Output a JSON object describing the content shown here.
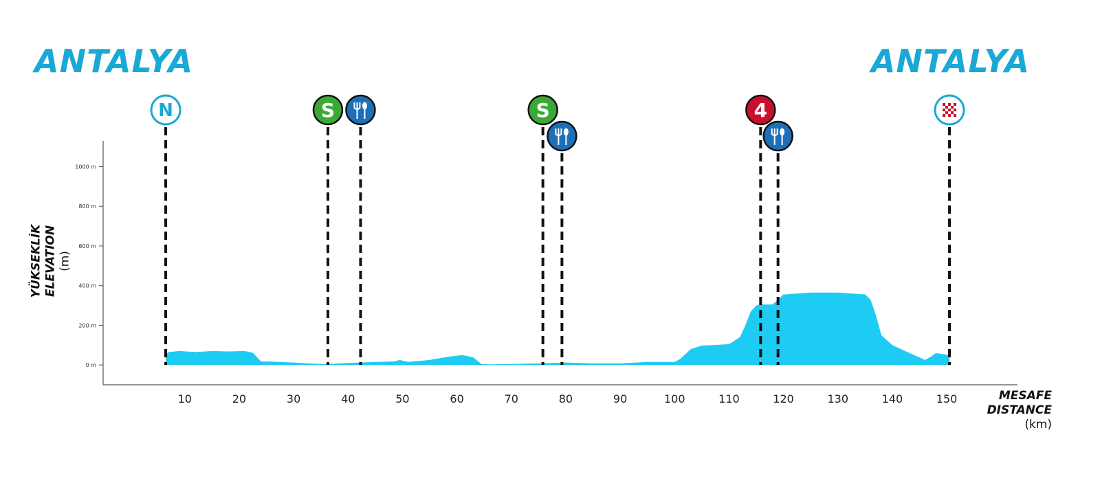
{
  "start_city": "ANTALYA",
  "finish_city": "ANTALYA",
  "colors": {
    "profile": "#1ecbf2",
    "city": "#1aa9d6",
    "sprint": "#3aaa35",
    "feed": "#1d6fb8",
    "climb": "#c8102e",
    "neutral_ring": "#1aa9d6"
  },
  "chart_data": {
    "type": "area",
    "ylabel_lines": [
      "YÜKSEKLİK",
      "ELEVATION",
      "(m)"
    ],
    "xlabel_lines": [
      "MESAFE",
      "DISTANCE",
      "(km)"
    ],
    "xlim": [
      -5,
      163
    ],
    "ylim": [
      -100,
      1130
    ],
    "x_ticks": [
      10,
      20,
      30,
      40,
      50,
      60,
      70,
      80,
      90,
      100,
      110,
      120,
      130,
      140,
      150
    ],
    "y_ticks": [
      0,
      200,
      400,
      600,
      800,
      1000
    ],
    "y_tick_labels": [
      "0 m",
      "200 m",
      "400 m",
      "600 m",
      "800 m",
      "1000 m"
    ],
    "profile": {
      "x": [
        6.5,
        7,
        9,
        12,
        15,
        18,
        21,
        22.5,
        24,
        26,
        30,
        34,
        36,
        40,
        45,
        48.5,
        49.5,
        51,
        55,
        58,
        61,
        63,
        64.5,
        66,
        70,
        75,
        80,
        85,
        90,
        95,
        100,
        101,
        102,
        103,
        105,
        107,
        110,
        112,
        113,
        114,
        115,
        116,
        118,
        120,
        125,
        130,
        135,
        136,
        137,
        138,
        140,
        142,
        144,
        145,
        146,
        147,
        148,
        150.5
      ],
      "y": [
        50,
        65,
        70,
        65,
        70,
        68,
        70,
        62,
        18,
        17,
        12,
        6,
        5,
        10,
        15,
        18,
        25,
        15,
        25,
        40,
        50,
        38,
        5,
        3,
        5,
        8,
        12,
        8,
        8,
        15,
        15,
        30,
        55,
        80,
        98,
        100,
        105,
        140,
        200,
        270,
        300,
        305,
        305,
        355,
        365,
        365,
        355,
        330,
        250,
        150,
        100,
        75,
        50,
        38,
        25,
        40,
        60,
        50
      ]
    },
    "markers": [
      {
        "km": 6.5,
        "type": "neutral",
        "label": "N"
      },
      {
        "km": 36.3,
        "type": "sprint",
        "label": "S"
      },
      {
        "km": 42.3,
        "type": "feed",
        "label": ""
      },
      {
        "km": 75.8,
        "type": "sprint",
        "label": "S"
      },
      {
        "km": 79.3,
        "type": "feed",
        "label": ""
      },
      {
        "km": 115.8,
        "type": "climb",
        "label": "4"
      },
      {
        "km": 119.0,
        "type": "feed",
        "label": ""
      },
      {
        "km": 150.5,
        "type": "finish",
        "label": ""
      }
    ]
  }
}
